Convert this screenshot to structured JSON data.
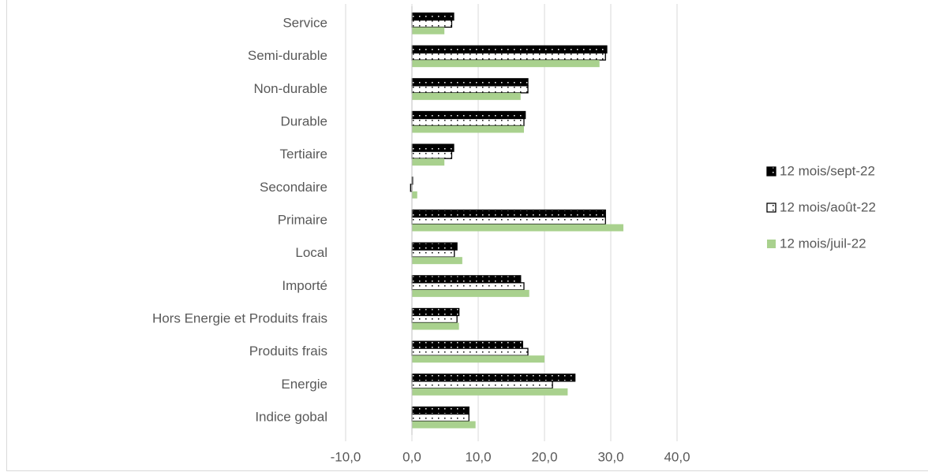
{
  "chart_data": {
    "type": "bar",
    "orientation": "horizontal",
    "categories": [
      "Indice gobal",
      "Energie",
      "Produits frais",
      "Hors Energie et Produits frais",
      "Importé",
      "Local",
      "Primaire",
      "Secondaire",
      "Tertiaire",
      "Durable",
      "Non-durable",
      "Semi-durable",
      "Service"
    ],
    "series": [
      {
        "name": "12 mois/sept-22",
        "color": "#000000",
        "values": [
          8.6,
          24.6,
          16.7,
          7.1,
          16.4,
          6.8,
          29.2,
          0.1,
          6.3,
          17.1,
          17.5,
          29.4,
          6.3
        ]
      },
      {
        "name": "12 mois/août-22",
        "color": "#ffffff",
        "values": [
          8.6,
          21.2,
          17.5,
          6.8,
          16.9,
          6.4,
          29.2,
          -0.2,
          6.0,
          16.9,
          17.5,
          29.2,
          6.0
        ]
      },
      {
        "name": "12 mois/juil-22",
        "color": "#a9d18e",
        "values": [
          9.6,
          23.5,
          20.0,
          7.1,
          17.7,
          7.6,
          31.9,
          0.8,
          4.9,
          16.9,
          16.4,
          28.3,
          4.9
        ]
      }
    ],
    "xlim": [
      -10,
      40
    ],
    "xticks": [
      {
        "value": -10,
        "label": "-10,0"
      },
      {
        "value": 0,
        "label": "0,0"
      },
      {
        "value": 10,
        "label": "10,0"
      },
      {
        "value": 20,
        "label": "20,0"
      },
      {
        "value": 30,
        "label": "30,0"
      },
      {
        "value": 40,
        "label": "40,0"
      }
    ],
    "grid": true,
    "legend": "right"
  }
}
